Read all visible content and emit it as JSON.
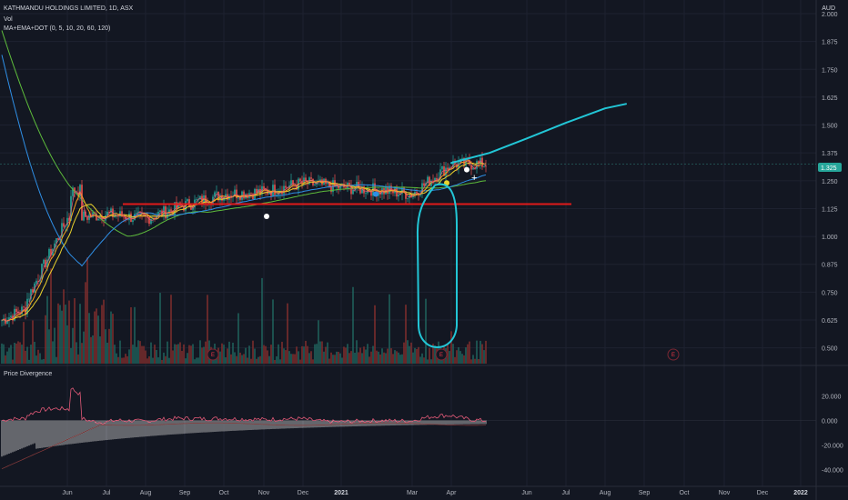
{
  "header": {
    "title": "KATHMANDU HOLDINGS LIMITED, 1D, ASX",
    "vol_label": "Vol",
    "indicator_label": "MA+EMA+DOT (0, 5, 10, 20, 60, 120)",
    "currency": "AUD",
    "last_price": "1.325"
  },
  "lower_pane": {
    "title": "Price Divergence"
  },
  "earnings_marker_label": "E",
  "colors": {
    "background": "#131722",
    "up": "#26a69a",
    "down": "#ef5350",
    "annotation_line": "#e01a1a",
    "annotation_curve": "#22c6d6",
    "ma_blue": "#2f8fe6",
    "ma_green": "#5dbb3b",
    "ma_yellow": "#e9d22d",
    "ma_orange": "#f5a020",
    "ma_pink": "#e35a78",
    "price_badge": "#26a69a"
  },
  "chart_data": [
    {
      "type": "candlestick",
      "title": "KATHMANDU HOLDINGS LIMITED, 1D, ASX",
      "currency": "AUD",
      "x_ticks": [
        "Jun",
        "Jul",
        "Aug",
        "Sep",
        "Oct",
        "Nov",
        "Dec",
        "2021",
        "Mar",
        "Apr",
        "Jun",
        "Jul",
        "Aug",
        "Sep",
        "Oct",
        "Nov",
        "Dec",
        "2022"
      ],
      "y_ticks": [
        "2.000",
        "1.875",
        "1.750",
        "1.625",
        "1.500",
        "1.375",
        "1.250",
        "1.125",
        "1.000",
        "0.875",
        "0.750",
        "0.625",
        "0.500"
      ],
      "ylim": [
        0.47,
        2.0
      ],
      "last_price": 1.325,
      "monthly_close": [
        {
          "month": "May 2020",
          "close": 0.72
        },
        {
          "month": "Jun 2020",
          "close": 1.08
        },
        {
          "month": "Jul 2020",
          "close": 1.1
        },
        {
          "month": "Aug 2020",
          "close": 1.08
        },
        {
          "month": "Sep 2020",
          "close": 1.14
        },
        {
          "month": "Oct 2020",
          "close": 1.19
        },
        {
          "month": "Nov 2020",
          "close": 1.2
        },
        {
          "month": "Dec 2020",
          "close": 1.24
        },
        {
          "month": "Jan 2021",
          "close": 1.22
        },
        {
          "month": "Feb 2021",
          "close": 1.21
        },
        {
          "month": "Mar 2021",
          "close": 1.19
        },
        {
          "month": "Apr 2021",
          "close": 1.325
        }
      ],
      "annotations": {
        "support_line": 1.145,
        "projection": [
          {
            "month": "Apr 2021",
            "value": 1.33
          },
          {
            "month": "May 2021",
            "value": 1.375
          },
          {
            "month": "Jun 2021",
            "value": 1.44
          },
          {
            "month": "Jul 2021",
            "value": 1.51
          },
          {
            "month": "Aug 2021",
            "value": 1.575
          }
        ]
      },
      "earnings_markers": [
        "Sep 2020",
        "Mar 2021",
        "Oct 2021"
      ]
    },
    {
      "type": "line",
      "title": "Price Divergence",
      "y_ticks": [
        "20.000",
        "0.000",
        "-20.000",
        "-40.000"
      ],
      "ylim": [
        -44,
        24
      ]
    }
  ]
}
